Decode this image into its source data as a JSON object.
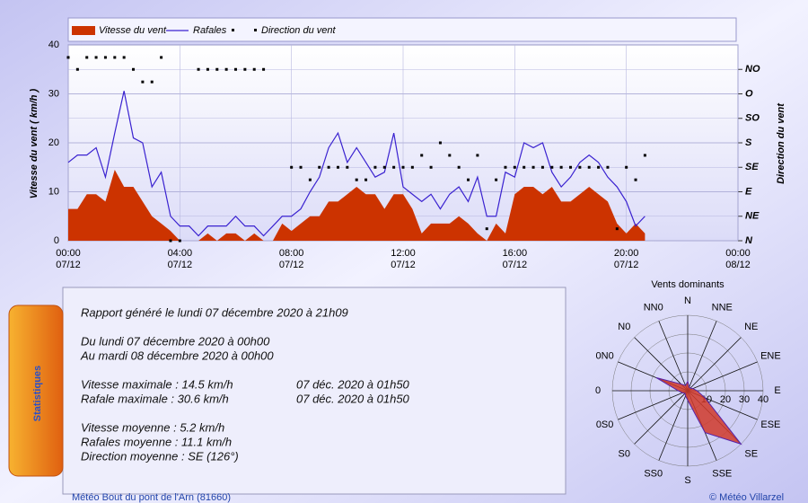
{
  "chart_data": [
    {
      "type": "combo",
      "y_label": "Vitesse du vent ( km/h )",
      "y2_label": "Direction du vent",
      "x": [
        0,
        0.3333,
        0.6667,
        1,
        1.3333,
        1.6667,
        2,
        2.3333,
        2.6667,
        3,
        3.3333,
        3.6667,
        4,
        4.3333,
        4.6667,
        5,
        5.3333,
        5.6667,
        6,
        6.3333,
        6.6667,
        7,
        7.3333,
        7.6667,
        8,
        8.3333,
        8.6667,
        9,
        9.3333,
        9.6667,
        10,
        10.3333,
        10.6667,
        11,
        11.3333,
        11.6667,
        12,
        12.3333,
        12.6667,
        13,
        13.3333,
        13.6667,
        14,
        14.3333,
        14.6667,
        15,
        15.3333,
        15.6667,
        16,
        16.3333,
        16.6667,
        17,
        17.3333,
        17.6667,
        18,
        18.3333,
        18.6667,
        19,
        19.3333,
        19.6667,
        20,
        20.3333,
        20.6667
      ],
      "xlim": [
        0,
        24
      ],
      "xticks": [
        {
          "value": 0,
          "label": "00:00",
          "date": "07/12"
        },
        {
          "value": 4,
          "label": "04:00",
          "date": "07/12"
        },
        {
          "value": 8,
          "label": "08:00",
          "date": "07/12"
        },
        {
          "value": 12,
          "label": "12:00",
          "date": "07/12"
        },
        {
          "value": 16,
          "label": "16:00",
          "date": "07/12"
        },
        {
          "value": 20,
          "label": "20:00",
          "date": "07/12"
        },
        {
          "value": 24,
          "label": "00:00",
          "date": "08/12"
        }
      ],
      "ylim": [
        0,
        40
      ],
      "yticks": [
        0,
        10,
        20,
        30,
        40
      ],
      "y2lim": [
        0,
        360
      ],
      "y2ticks": [
        {
          "value": 0,
          "label": "N"
        },
        {
          "value": 45,
          "label": "NE"
        },
        {
          "value": 90,
          "label": "E"
        },
        {
          "value": 135,
          "label": "SE"
        },
        {
          "value": 180,
          "label": "S"
        },
        {
          "value": 225,
          "label": "SO"
        },
        {
          "value": 270,
          "label": "O"
        },
        {
          "value": 315,
          "label": "NO"
        }
      ],
      "grid": true,
      "series": [
        {
          "name": "Vitesse du vent",
          "type": "area",
          "color": "#cc3300",
          "values": [
            6.5,
            6.5,
            9.5,
            9.5,
            8,
            14.5,
            11,
            11,
            8,
            5,
            3.5,
            2,
            0,
            0,
            0,
            1.5,
            0,
            1.5,
            1.5,
            0,
            1.5,
            0,
            0,
            3.5,
            2,
            3.5,
            5,
            5,
            8,
            8,
            9.5,
            11,
            9.5,
            9.5,
            6.5,
            9.5,
            9.5,
            6.5,
            1.5,
            3.5,
            3.5,
            3.5,
            5,
            3.5,
            1.5,
            0,
            3.5,
            1.5,
            9.5,
            11,
            11,
            9.5,
            11,
            8,
            8,
            9.5,
            11,
            9.5,
            8,
            3.5,
            1.5,
            3.5,
            1.5
          ]
        },
        {
          "name": "Rafales",
          "type": "line",
          "color": "#3a22d0",
          "values": [
            16,
            17.5,
            17.5,
            19,
            13,
            22,
            30.6,
            21,
            20,
            11,
            14,
            5,
            3,
            3,
            1,
            3,
            3,
            3,
            5,
            3,
            3,
            1,
            3,
            5,
            5,
            6.5,
            10,
            13,
            19,
            22,
            16,
            19,
            16,
            13,
            14,
            22,
            11,
            9.5,
            8,
            9.5,
            6.5,
            9.5,
            11,
            8,
            13,
            5,
            5,
            14,
            13,
            20,
            19,
            20,
            14,
            11,
            13,
            16,
            17.5,
            16,
            13,
            11,
            8,
            3,
            5
          ]
        },
        {
          "name": "Direction du vent",
          "type": "scatter",
          "axis": "y2",
          "color": "#000000",
          "values": [
            337,
            315,
            337,
            337,
            337,
            337,
            337,
            315,
            292,
            292,
            337,
            0,
            0,
            null,
            315,
            315,
            315,
            315,
            315,
            315,
            315,
            315,
            null,
            null,
            135,
            135,
            112,
            135,
            135,
            135,
            135,
            112,
            112,
            135,
            135,
            135,
            135,
            135,
            157,
            135,
            180,
            157,
            135,
            112,
            157,
            22,
            112,
            135,
            135,
            135,
            135,
            135,
            135,
            135,
            135,
            135,
            135,
            135,
            135,
            22,
            135,
            112,
            157
          ]
        }
      ]
    },
    {
      "type": "rose",
      "title": "Vents dominants",
      "categories": [
        "N",
        "NNE",
        "NE",
        "ENE",
        "E",
        "ESE",
        "SE",
        "SSE",
        "S",
        "SS0",
        "S0",
        "0S0",
        "0",
        "0N0",
        "N0",
        "NN0"
      ],
      "values": [
        5,
        2,
        2,
        3,
        5,
        10,
        40,
        24,
        5,
        3,
        2,
        3,
        5,
        18,
        5,
        3
      ],
      "rlim": [
        0,
        40
      ],
      "rticks": [
        10,
        20,
        30,
        40
      ],
      "color": "#d03a2a"
    }
  ],
  "statistics": {
    "title": "Statistiques",
    "report": "Rapport généré le lundi 07 décembre 2020 à 21h09",
    "period_from": "Du lundi 07 décembre 2020 à 00h00",
    "period_to": "Au mardi 08 décembre 2020 à 00h00",
    "max_speed": "Vitesse maximale : 14.5 km/h",
    "max_speed_time": "07 déc. 2020 à 01h50",
    "max_gust": "Rafale maximale : 30.6 km/h",
    "max_gust_time": "07 déc. 2020 à 01h50",
    "avg_speed": "Vitesse moyenne : 5.2 km/h",
    "avg_gust": "Rafales moyenne : 11.1 km/h",
    "avg_direction": "Direction moyenne : SE (126°)"
  },
  "footer": {
    "station": "Météo Bout du pont de l'Arn (81660)",
    "copyright": "© Météo Villarzel"
  }
}
